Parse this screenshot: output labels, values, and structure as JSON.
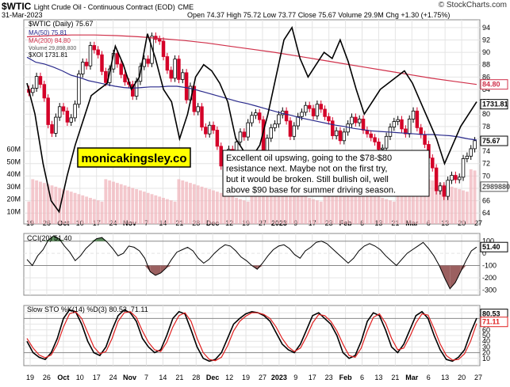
{
  "header": {
    "symbol": "$WTIC",
    "description": "Light Crude Oil - Continuous Contract (EOD)",
    "exchange": "CME",
    "date": "31-Mar-2023",
    "open": "Open 74.37",
    "high": "High 75.72",
    "low": "Low 73.77",
    "close": "Close 75.67",
    "volume": "Volume 29.9M",
    "change": "Chg +1.30 (+1.75%)",
    "copyright": "© StockCharts.com"
  },
  "legend": {
    "main": "$WTIC (Daily) 75.67",
    "ma50": "MA(50) 75.81",
    "ma200": "MA(200) 84.80",
    "volume": "Volume 29,898,800",
    "xoi": "$XOI 1731.81"
  },
  "annotation": {
    "brand": "monicakingsley.co",
    "note_lines": [
      "Excellent oil upswing, going to the $78-$80",
      "resistance next. Maybe not on the first try,",
      "but it would be broken. Still bullish oil, well",
      "above $90 base for summer driving season."
    ]
  },
  "chart_data": [
    {
      "type": "candlestick",
      "title": "$WTIC (Daily)",
      "price_axis": {
        "ticks": [
          64,
          66,
          68,
          70,
          72,
          74,
          76,
          78,
          80,
          82,
          84,
          86,
          88,
          90,
          92,
          94
        ],
        "ylim": [
          63,
          95
        ]
      },
      "volume_axis": {
        "ticks": [
          "10M",
          "20M",
          "30M",
          "40M",
          "50M",
          "60M"
        ],
        "ylim": [
          0,
          70
        ]
      },
      "x_ticks": [
        "19",
        "26",
        "Oct",
        "10",
        "17",
        "24",
        "Nov",
        "7",
        "14",
        "21",
        "28",
        "Dec",
        "12",
        "19",
        "27",
        "2023",
        "9",
        "17",
        "23",
        "Feb",
        "6",
        "13",
        "21",
        "Mar",
        "6",
        "13",
        "20",
        "27"
      ],
      "close": [
        83.5,
        84.2,
        86.1,
        84.8,
        82.6,
        78.3,
        76.9,
        79.5,
        81.2,
        80.5,
        78.7,
        79.4,
        81.6,
        86.5,
        88.4,
        87.8,
        91.1,
        90.4,
        89.6,
        86.9,
        85.1,
        87.3,
        89.8,
        88.1,
        86.4,
        85.2,
        84.8,
        82.9,
        85.3,
        87.7,
        88.9,
        88.2,
        92.6,
        92.1,
        91.8,
        89.3,
        87.1,
        85.8,
        88.9,
        85.6,
        86.7,
        82.3,
        84.5,
        80.4,
        81.2,
        77.9,
        76.8,
        78.2,
        77.4,
        74.8,
        71.6,
        72.1,
        74.3,
        72.9,
        75.5,
        77.1,
        76.3,
        78.6,
        79.8,
        80.2,
        79.1,
        73.5,
        76.1,
        77.8,
        78.4,
        79.9,
        80.5,
        78.9,
        76.4,
        78.1,
        79.6,
        80.3,
        81.4,
        80.9,
        79.7,
        81.6,
        80.8,
        79.6,
        78.9,
        76.5,
        77.3,
        75.7,
        77.1,
        78.4,
        79.5,
        78.6,
        79.2,
        77.4,
        76.8,
        76.2,
        75.5,
        74.3,
        74.5,
        76.4,
        77.9,
        78.8,
        79.1,
        77.6,
        76.8,
        79.2,
        80.5,
        77.8,
        76.7,
        75.1,
        72.9,
        71.3,
        67.6,
        68.4,
        66.7,
        69.3,
        70.1,
        69.4,
        69.8,
        72.8,
        73.2,
        74.4,
        75.7
      ],
      "xoi_ticks": [
        "1731.81"
      ],
      "ma50": [
        89.2,
        88.4,
        88.1,
        87.6,
        87.0,
        86.3,
        85.9,
        85.4,
        85.1,
        84.8,
        84.5,
        84.3,
        84.2,
        84.3,
        84.4,
        84.4,
        84.5,
        84.5,
        84.3,
        84.0,
        83.6,
        83.2,
        82.8,
        82.4,
        82.0,
        81.7,
        81.3,
        80.9,
        80.5,
        80.1,
        79.8,
        79.4,
        79.1,
        78.8,
        78.5,
        78.2,
        78.0,
        77.7,
        77.5,
        77.3,
        77.2,
        77.1,
        77.0,
        76.9,
        76.8,
        76.7,
        76.7,
        76.6,
        76.5,
        76.3,
        76.0,
        75.8
      ],
      "ma200": [
        92.5,
        92.7,
        92.8,
        92.8,
        92.7,
        92.5,
        92.2,
        91.9,
        91.5,
        91.0,
        90.5,
        90.0,
        89.4,
        88.8,
        88.2,
        87.6,
        87.0,
        86.4,
        85.8,
        85.3,
        84.8
      ],
      "xoi": [
        85.0,
        80.0,
        72.0,
        66.0,
        64.2,
        70.0,
        75.0,
        79.0,
        83.0,
        84.0,
        85.0,
        91.0,
        88.0,
        84.0,
        86.0,
        93.0,
        89.0,
        84.0,
        82.0,
        76.0,
        80.0,
        86.0,
        88.0,
        87.0,
        85.0,
        82.0,
        76.0,
        74.0,
        73.0,
        75.0,
        80.0,
        86.0,
        92.0,
        94.0,
        89.0,
        86.0,
        88.0,
        90.0,
        89.0,
        92.0,
        88.5,
        84.0,
        80.0,
        82.0,
        84.0,
        85.0,
        86.0,
        87.0,
        85.0,
        82.0,
        79.0,
        76.0,
        72.0,
        75.0,
        78.0,
        80.0,
        82.0
      ],
      "last_labels": {
        "ma200": "84.80",
        "xoi": "1731.81",
        "close": "75.67",
        "volume": "29898800"
      }
    },
    {
      "type": "line",
      "title": "CCI(20) 51.40",
      "yticks": [
        100,
        0,
        -100,
        -200,
        -300
      ],
      "ylim": [
        -330,
        150
      ],
      "last_label": "51.40",
      "values": [
        -50,
        -100,
        -20,
        30,
        110,
        145,
        120,
        60,
        10,
        -60,
        -20,
        40,
        80,
        120,
        130,
        90,
        40,
        -20,
        0,
        60,
        50,
        20,
        -40,
        -150,
        -180,
        -160,
        -120,
        -50,
        10,
        30,
        50,
        20,
        -40,
        -80,
        -50,
        0,
        40,
        70,
        60,
        20,
        -30,
        -60,
        -100,
        -130,
        -80,
        -20,
        30,
        60,
        70,
        40,
        -10,
        -40,
        20,
        50,
        90,
        100,
        80,
        40,
        0,
        -40,
        -80,
        -40,
        20,
        60,
        80,
        60,
        30,
        -20,
        -60,
        -100,
        -50,
        0,
        30,
        60,
        90,
        40,
        -20,
        -100,
        -200,
        -290,
        -240,
        -150,
        -60,
        20,
        51.4
      ]
    },
    {
      "type": "line",
      "title": "Slow STO %K(14) %D(3) 80.53, 71.11",
      "yticks": [
        90,
        80,
        70,
        60,
        50,
        40,
        30,
        20,
        10
      ],
      "ylim": [
        0,
        100
      ],
      "series": [
        {
          "name": "%K(14)",
          "last": "80.53",
          "values": [
            40,
            20,
            12,
            8,
            20,
            45,
            80,
            95,
            92,
            70,
            40,
            20,
            15,
            30,
            60,
            85,
            95,
            90,
            75,
            45,
            30,
            20,
            25,
            50,
            80,
            92,
            88,
            60,
            30,
            10,
            5,
            8,
            20,
            45,
            70,
            80,
            88,
            92,
            90,
            85,
            75,
            55,
            35,
            25,
            20,
            35,
            60,
            85,
            90,
            80,
            70,
            50,
            20,
            10,
            15,
            40,
            75,
            90,
            85,
            60,
            30,
            20,
            35,
            60,
            85,
            92,
            80,
            50,
            25,
            8,
            5,
            12,
            25,
            55,
            80.53
          ]
        },
        {
          "name": "%D(3)",
          "last": "71.11",
          "values": [
            45,
            28,
            16,
            11,
            16,
            35,
            65,
            88,
            92,
            80,
            55,
            30,
            18,
            22,
            45,
            75,
            90,
            92,
            82,
            58,
            38,
            25,
            22,
            38,
            65,
            85,
            90,
            75,
            45,
            20,
            8,
            6,
            12,
            32,
            58,
            75,
            84,
            90,
            90,
            87,
            80,
            65,
            45,
            30,
            22,
            28,
            48,
            72,
            87,
            85,
            75,
            58,
            35,
            15,
            12,
            28,
            58,
            82,
            88,
            72,
            45,
            25,
            28,
            48,
            72,
            88,
            86,
            62,
            35,
            15,
            7,
            8,
            18,
            40,
            71.11
          ]
        }
      ],
      "last_labels": [
        "80.53",
        "71.11"
      ]
    }
  ],
  "colors": {
    "up_candle": "#000000",
    "down_candle": "#d40028",
    "ma50": "#2a2a8c",
    "ma200": "#d0304a",
    "xoi": "#000000",
    "volume": "#f0b0b8",
    "cci_positive": "#5a8a5a",
    "cci_negative": "#9b6060",
    "sto_k": "#000000",
    "sto_d": "#e02020",
    "brand_box": "#ffff00"
  }
}
